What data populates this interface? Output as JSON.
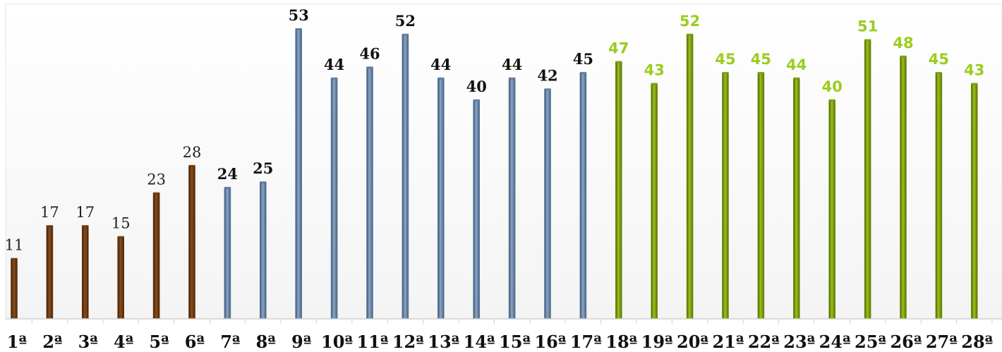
{
  "chart_data": {
    "type": "bar",
    "categories": [
      "1ª",
      "2ª",
      "3ª",
      "4ª",
      "5ª",
      "6ª",
      "7ª",
      "8ª",
      "9ª",
      "10ª",
      "11ª",
      "12ª",
      "13ª",
      "14ª",
      "15ª",
      "16ª",
      "17ª",
      "18ª",
      "19ª",
      "20ª",
      "21ª",
      "22ª",
      "23ª",
      "24ª",
      "25ª",
      "26ª",
      "27ª",
      "28ª"
    ],
    "values": [
      11,
      17,
      17,
      15,
      23,
      28,
      24,
      25,
      53,
      44,
      46,
      52,
      44,
      40,
      44,
      42,
      45,
      47,
      43,
      52,
      45,
      45,
      44,
      40,
      51,
      48,
      45,
      43
    ],
    "groups": [
      {
        "from": 0,
        "to": 5,
        "color": "#6b3a12",
        "label_color": "#222222",
        "label_weight": "normal"
      },
      {
        "from": 6,
        "to": 16,
        "color": "#5d7a9c",
        "label_color": "#111111",
        "label_weight": "bold"
      },
      {
        "from": 17,
        "to": 27,
        "color": "#7a9a10",
        "label_color": "#9acd1e",
        "label_weight": "bold"
      }
    ],
    "ylim": [
      0,
      57
    ],
    "grid": false,
    "legend": "none"
  }
}
